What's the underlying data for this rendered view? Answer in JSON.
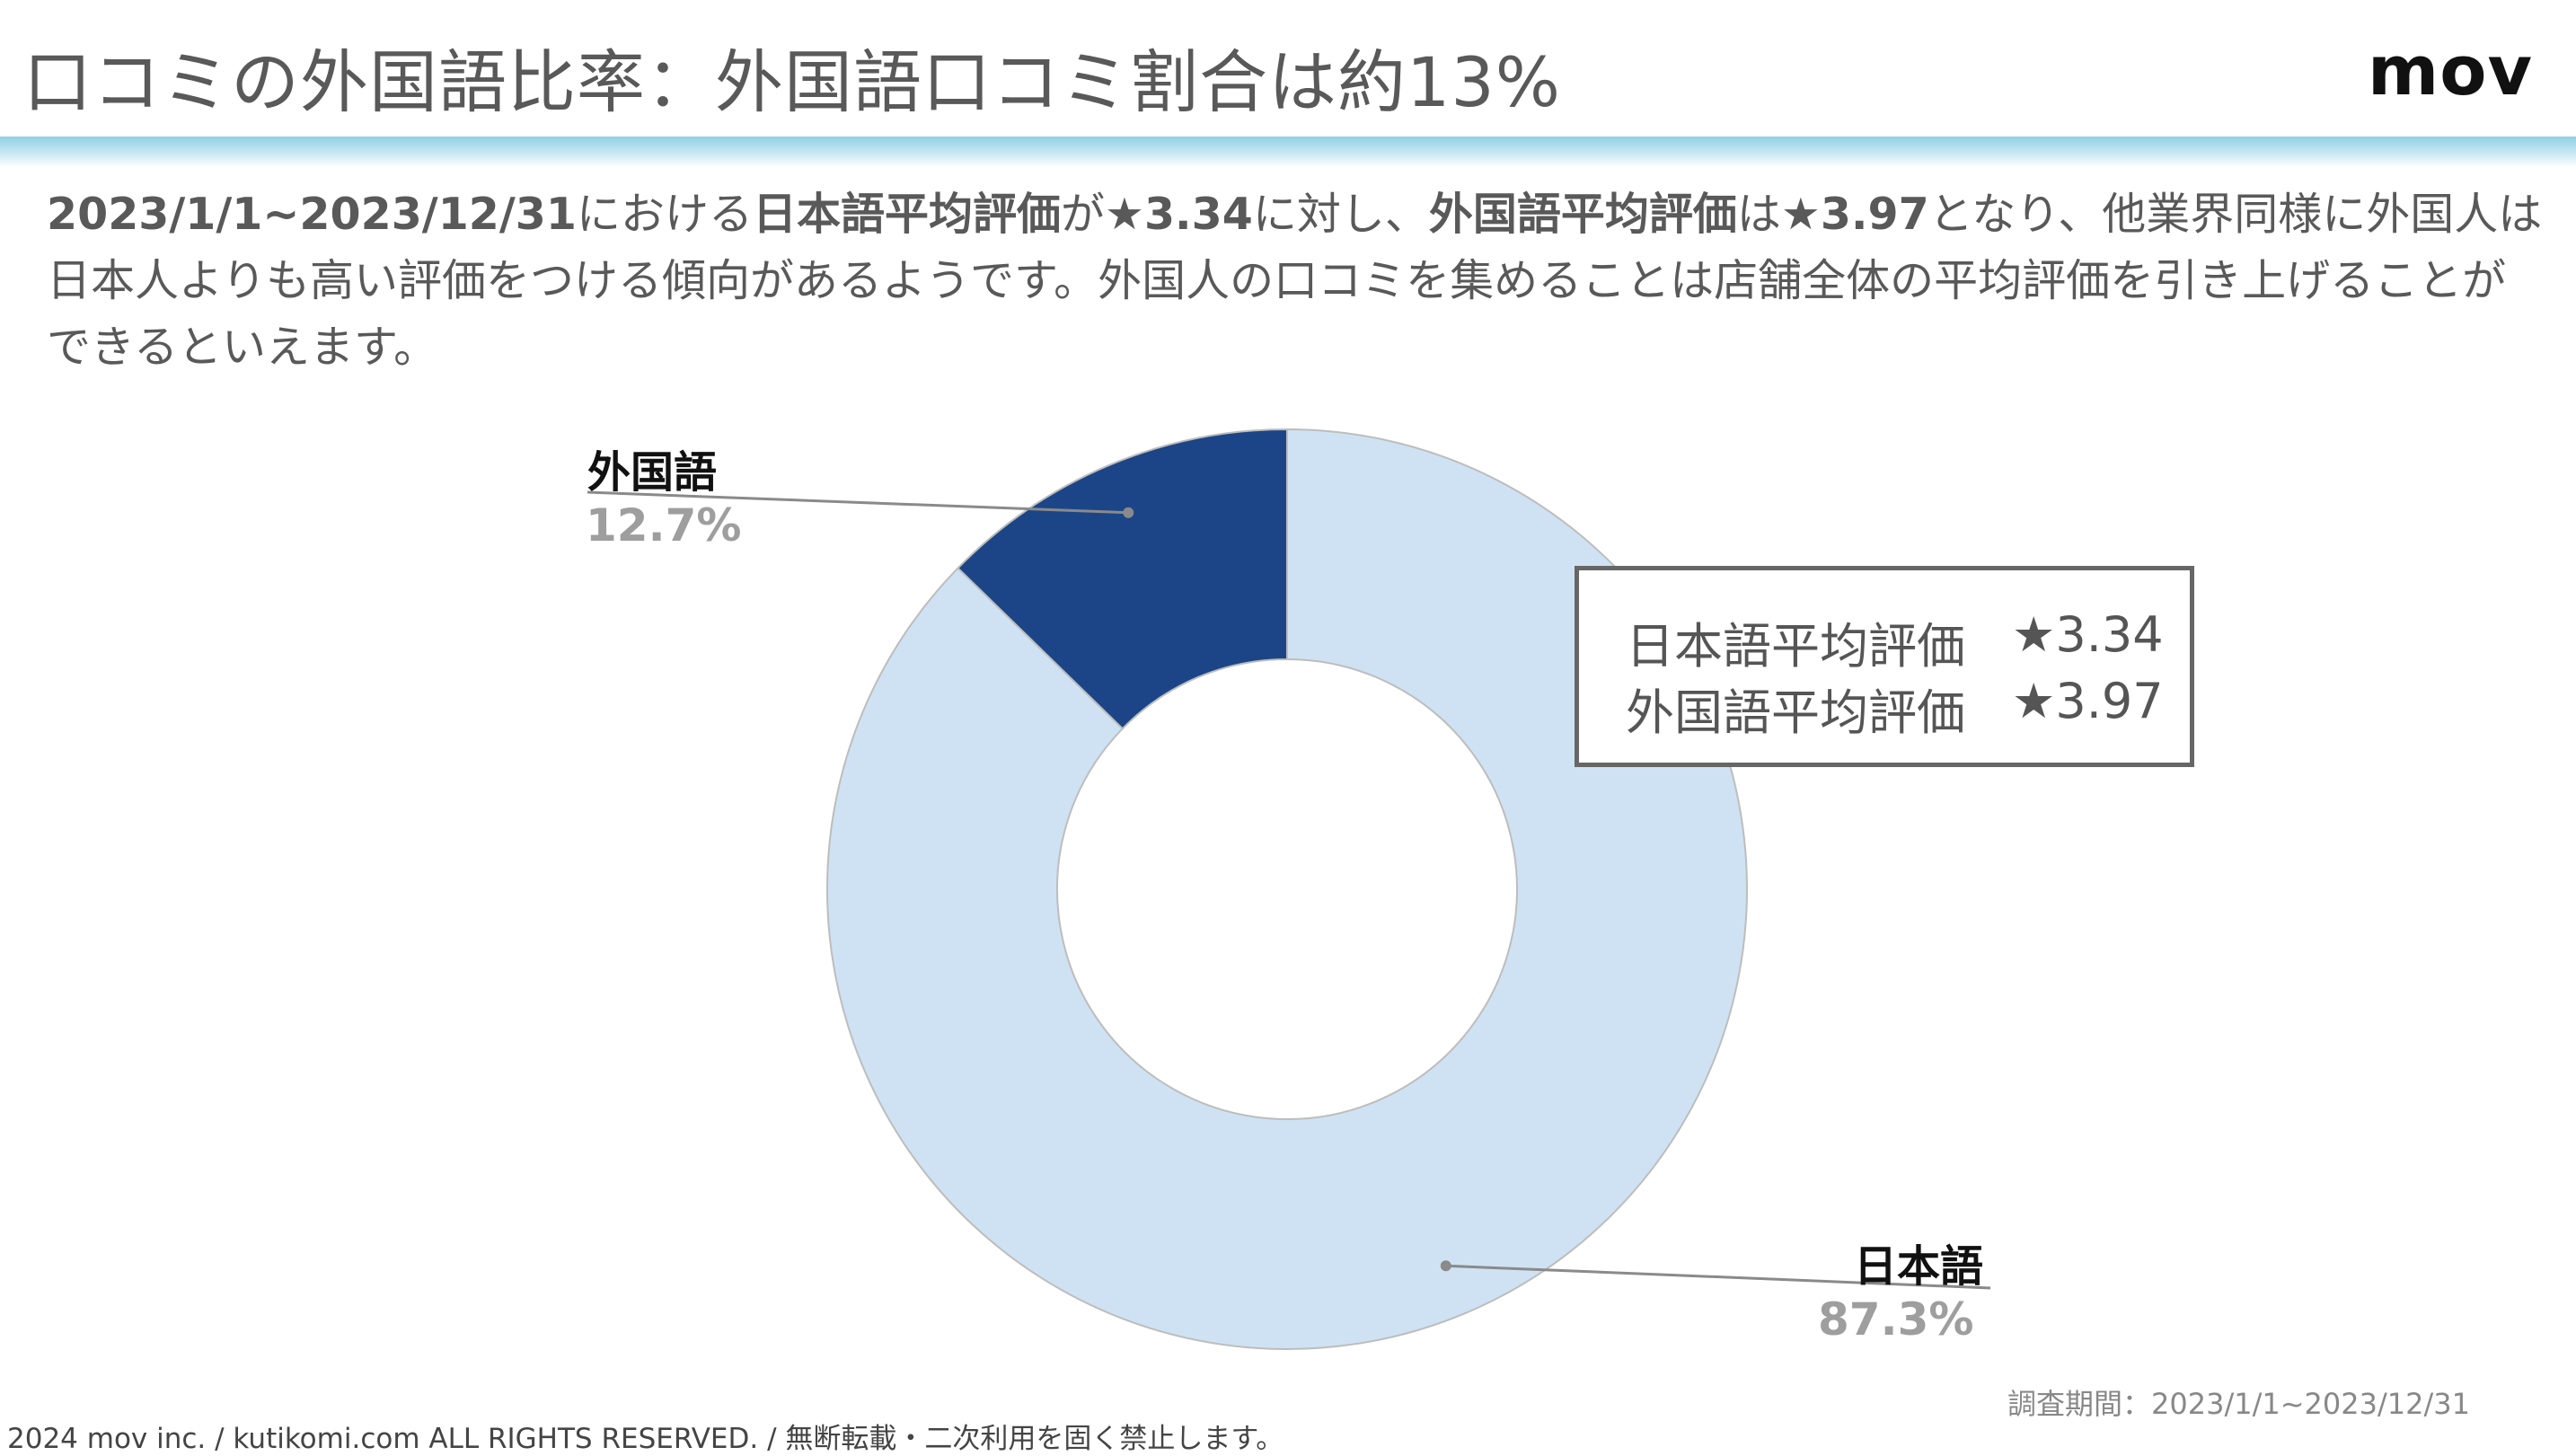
{
  "header": {
    "title": "口コミの外国語比率：外国語口コミ割合は約13%",
    "logo": "mov"
  },
  "description": {
    "period": "2023/1/1~2023/12/31",
    "t1": "における",
    "jp_label": "日本語平均評価",
    "t2": "が",
    "jp_value": "★3.34",
    "t3": "に対し、",
    "foreign_label": "外国語平均評価",
    "t4": "は",
    "foreign_value": "★3.97",
    "t5": "となり、他業界同様に外国人は日本人よりも高い評価をつける傾向があるようです。外国人の口コミを集めることは店舗全体の平均評価を引き上げることができるといえます。"
  },
  "chart_data": {
    "type": "pie",
    "donut": true,
    "categories": [
      "外国語",
      "日本語"
    ],
    "values": [
      12.7,
      87.3
    ],
    "labels": [
      "12.7%",
      "87.3%"
    ],
    "colors": [
      "#1c4587",
      "#cfe2f3"
    ]
  },
  "rating_box": {
    "rows": [
      {
        "label": "日本語平均評価",
        "value": "★3.34"
      },
      {
        "label": "外国語平均評価",
        "value": "★3.97"
      }
    ]
  },
  "footer": {
    "period": "調査期間：2023/1/1~2023/12/31",
    "copyright": "2024 mov inc. / kutikomi.com ALL RIGHTS RESERVED. / 無断転載・二次利用を固く禁止します。"
  }
}
